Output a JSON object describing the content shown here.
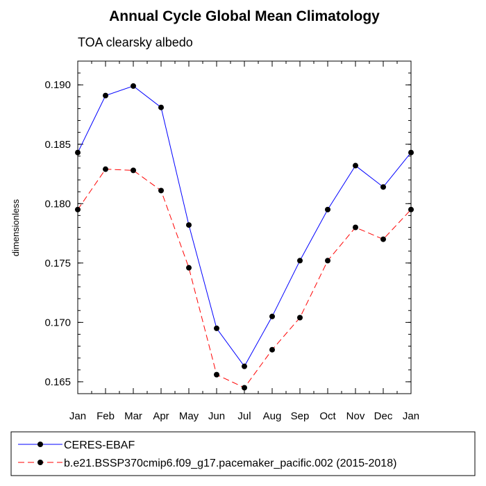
{
  "chart_data": {
    "type": "line",
    "title": "Annual Cycle Global Mean Climatology",
    "subtitle": "TOA clearsky albedo",
    "xlabel": "",
    "ylabel": "dimensionless",
    "categories": [
      "Jan",
      "Feb",
      "Mar",
      "Apr",
      "May",
      "Jun",
      "Jul",
      "Aug",
      "Sep",
      "Oct",
      "Nov",
      "Dec",
      "Jan"
    ],
    "ylim": [
      0.164,
      0.192
    ],
    "yticks": [
      {
        "value": 0.165,
        "label": "0.165"
      },
      {
        "value": 0.17,
        "label": "0.170"
      },
      {
        "value": 0.175,
        "label": "0.175"
      },
      {
        "value": 0.18,
        "label": "0.180"
      },
      {
        "value": 0.185,
        "label": "0.185"
      },
      {
        "value": 0.19,
        "label": "0.190"
      }
    ],
    "grid": false,
    "legend_position": "bottom",
    "series": [
      {
        "name": "CERES-EBAF",
        "color": "#0000ff",
        "dash": "solid",
        "values": [
          0.1843,
          0.1891,
          0.1899,
          0.1881,
          0.1782,
          0.1695,
          0.1663,
          0.1705,
          0.1752,
          0.1795,
          0.1832,
          0.1814,
          0.1843
        ]
      },
      {
        "name": "b.e21.BSSP370cmip6.f09_g17.pacemaker_pacific.002 (2015-2018)",
        "color": "#ff0000",
        "dash": "dashed",
        "values": [
          0.1795,
          0.1829,
          0.1828,
          0.1811,
          0.1746,
          0.1656,
          0.1645,
          0.1677,
          0.1704,
          0.1752,
          0.178,
          0.177,
          0.1795
        ]
      }
    ]
  }
}
